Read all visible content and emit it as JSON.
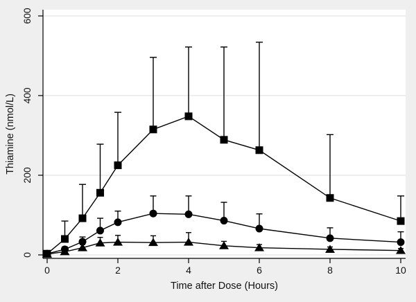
{
  "figure": {
    "background_color": "#efefef",
    "plot_background_color": "#ffffff",
    "grid_color": "#e3e3e3",
    "axis_color": "#000000",
    "series_color": "#000000"
  },
  "chart_data": {
    "type": "line",
    "title": "",
    "xlabel": "Time after Dose (Hours)",
    "ylabel": "Thiamine (nmol/L)",
    "xlim": [
      0,
      10
    ],
    "ylim": [
      0,
      600
    ],
    "xticks": [
      0,
      2,
      4,
      6,
      8,
      10
    ],
    "yticks": [
      0,
      200,
      400,
      600
    ],
    "grid": "horizontal",
    "legend": "none",
    "error_bars": "upper-only",
    "x": [
      0,
      0.5,
      1,
      1.5,
      2,
      3,
      4,
      5,
      6,
      8,
      10
    ],
    "series": [
      {
        "name": "square-series",
        "marker": "square",
        "values": [
          3,
          40,
          92,
          156,
          225,
          315,
          348,
          289,
          263,
          143,
          85
        ],
        "error_plus": [
          0,
          45,
          85,
          122,
          133,
          181,
          174,
          233,
          271,
          159,
          63
        ]
      },
      {
        "name": "circle-series",
        "marker": "circle",
        "values": [
          3,
          14,
          33,
          61,
          82,
          104,
          102,
          86,
          66,
          42,
          32
        ],
        "error_plus": [
          0,
          6,
          12,
          31,
          28,
          44,
          46,
          46,
          37,
          26,
          26
        ]
      },
      {
        "name": "triangle-series",
        "marker": "triangle",
        "values": [
          2,
          8,
          18,
          30,
          32,
          31,
          32,
          23,
          18,
          14,
          11
        ],
        "error_plus": [
          0,
          4,
          8,
          14,
          17,
          17,
          24,
          11,
          8,
          6,
          5
        ]
      }
    ]
  }
}
